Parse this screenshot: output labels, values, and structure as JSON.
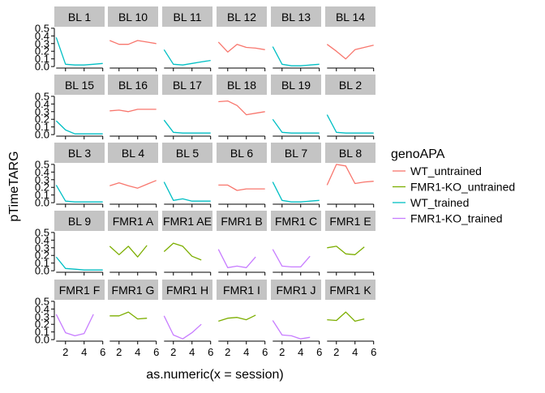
{
  "chart_data": {
    "type": "line",
    "facet": true,
    "xlabel": "as.numeric(x = session)",
    "ylabel": "pTimeTARG",
    "x_ticks": [
      2,
      4,
      6
    ],
    "y_ticks": [
      "0.0",
      "0.1",
      "0.2",
      "0.3",
      "0.4",
      "0.5"
    ],
    "xlim": [
      0.8,
      6.2
    ],
    "ylim": [
      -0.02,
      0.52
    ],
    "legend": {
      "title": "genoAPA",
      "placement": "right",
      "entries": [
        {
          "label": "WT_untrained",
          "color": "#F8766D"
        },
        {
          "label": "FMR1-KO_untrained",
          "color": "#7CAE00"
        },
        {
          "label": "WT_trained",
          "color": "#00BFC4"
        },
        {
          "label": "FMR1-KO_trained",
          "color": "#C77CFF"
        }
      ]
    },
    "panels": [
      {
        "label": "BL 1",
        "group": "WT_trained",
        "x": [
          1,
          2,
          3,
          4,
          5,
          6
        ],
        "y": [
          0.38,
          0.03,
          0.02,
          0.02,
          0.03,
          0.04
        ]
      },
      {
        "label": "BL 10",
        "group": "WT_untrained",
        "x": [
          1,
          2,
          3,
          4,
          5,
          6
        ],
        "y": [
          0.34,
          0.29,
          0.29,
          0.34,
          0.32,
          0.3
        ]
      },
      {
        "label": "BL 11",
        "group": "WT_trained",
        "x": [
          1,
          2,
          3,
          4,
          5,
          6
        ],
        "y": [
          0.22,
          0.03,
          0.02,
          0.04,
          0.06,
          0.08
        ]
      },
      {
        "label": "BL 12",
        "group": "WT_untrained",
        "x": [
          1,
          2,
          3,
          4,
          5,
          6
        ],
        "y": [
          0.32,
          0.19,
          0.29,
          0.25,
          0.24,
          0.22
        ]
      },
      {
        "label": "BL 13",
        "group": "WT_trained",
        "x": [
          1,
          2,
          3,
          4,
          5,
          6
        ],
        "y": [
          0.26,
          0.03,
          0.01,
          0.01,
          0.02,
          0.03
        ]
      },
      {
        "label": "BL 14",
        "group": "WT_untrained",
        "x": [
          1,
          2,
          3,
          4,
          5,
          6
        ],
        "y": [
          0.29,
          0.2,
          0.1,
          0.22,
          0.25,
          0.28
        ]
      },
      {
        "label": "BL 15",
        "group": "WT_trained",
        "x": [
          1,
          2,
          3,
          4,
          5,
          6
        ],
        "y": [
          0.18,
          0.06,
          0.01,
          0.01,
          0.01,
          0.01
        ]
      },
      {
        "label": "BL 16",
        "group": "WT_untrained",
        "x": [
          1,
          2,
          3,
          4,
          5,
          6
        ],
        "y": [
          0.31,
          0.32,
          0.3,
          0.33,
          0.33,
          0.33
        ]
      },
      {
        "label": "BL 17",
        "group": "WT_trained",
        "x": [
          1,
          2,
          3,
          4,
          5,
          6
        ],
        "y": [
          0.19,
          0.03,
          0.02,
          0.02,
          0.02,
          0.02
        ]
      },
      {
        "label": "BL 18",
        "group": "WT_untrained",
        "x": [
          1,
          2,
          3,
          4,
          5,
          6
        ],
        "y": [
          0.43,
          0.44,
          0.38,
          0.26,
          0.28,
          0.3
        ]
      },
      {
        "label": "BL 19",
        "group": "WT_trained",
        "x": [
          1,
          2,
          3,
          4,
          5,
          6
        ],
        "y": [
          0.2,
          0.03,
          0.02,
          0.02,
          0.02,
          0.02
        ]
      },
      {
        "label": "BL 2",
        "group": "WT_trained",
        "x": [
          1,
          2,
          3,
          4,
          5,
          6
        ],
        "y": [
          0.26,
          0.03,
          0.02,
          0.02,
          0.02,
          0.02
        ]
      },
      {
        "label": "BL 3",
        "group": "WT_trained",
        "x": [
          1,
          2,
          3,
          4,
          5,
          6
        ],
        "y": [
          0.23,
          0.02,
          0.01,
          0.01,
          0.01,
          0.01
        ]
      },
      {
        "label": "BL 4",
        "group": "WT_untrained",
        "x": [
          1,
          2,
          3,
          4,
          5,
          6
        ],
        "y": [
          0.22,
          0.26,
          0.22,
          0.19,
          0.24,
          0.29
        ]
      },
      {
        "label": "BL 5",
        "group": "WT_trained",
        "x": [
          1,
          2,
          3,
          4,
          5,
          6
        ],
        "y": [
          0.27,
          0.03,
          0.05,
          0.02,
          0.02,
          0.02
        ]
      },
      {
        "label": "BL 6",
        "group": "WT_untrained",
        "x": [
          1,
          2,
          3,
          4,
          5,
          6
        ],
        "y": [
          0.23,
          0.23,
          0.16,
          0.18,
          0.18,
          0.18
        ]
      },
      {
        "label": "BL 7",
        "group": "WT_trained",
        "x": [
          1,
          2,
          3,
          4,
          5,
          6
        ],
        "y": [
          0.27,
          0.03,
          0.01,
          0.01,
          0.02,
          0.03
        ]
      },
      {
        "label": "BL 8",
        "group": "WT_untrained",
        "x": [
          1,
          2,
          3,
          4,
          5,
          6
        ],
        "y": [
          0.23,
          0.5,
          0.48,
          0.25,
          0.27,
          0.28
        ]
      },
      {
        "label": "BL 9",
        "group": "WT_trained",
        "x": [
          1,
          2,
          3,
          4,
          5,
          6
        ],
        "y": [
          0.18,
          0.03,
          0.02,
          0.01,
          0.01,
          0.01
        ]
      },
      {
        "label": "FMR1 A",
        "group": "FMR1-KO_untrained",
        "x": [
          1,
          2,
          3,
          4,
          5
        ],
        "y": [
          0.32,
          0.21,
          0.32,
          0.18,
          0.33
        ]
      },
      {
        "label": "FMR1 AE",
        "group": "FMR1-KO_untrained",
        "x": [
          1,
          2,
          3,
          4,
          5
        ],
        "y": [
          0.25,
          0.36,
          0.32,
          0.19,
          0.14
        ]
      },
      {
        "label": "FMR1 B",
        "group": "FMR1-KO_trained",
        "x": [
          1,
          2,
          3,
          4,
          5
        ],
        "y": [
          0.28,
          0.04,
          0.06,
          0.04,
          0.18
        ]
      },
      {
        "label": "FMR1 C",
        "group": "FMR1-KO_trained",
        "x": [
          1,
          2,
          3,
          4,
          5
        ],
        "y": [
          0.28,
          0.06,
          0.05,
          0.05,
          0.19
        ]
      },
      {
        "label": "FMR1 E",
        "group": "FMR1-KO_untrained",
        "x": [
          1,
          2,
          3,
          4,
          5
        ],
        "y": [
          0.3,
          0.32,
          0.22,
          0.21,
          0.31
        ]
      },
      {
        "label": "FMR1 F",
        "group": "FMR1-KO_trained",
        "x": [
          1,
          2,
          3,
          4,
          5
        ],
        "y": [
          0.33,
          0.09,
          0.05,
          0.08,
          0.33
        ]
      },
      {
        "label": "FMR1 G",
        "group": "FMR1-KO_untrained",
        "x": [
          1,
          2,
          3,
          4,
          5
        ],
        "y": [
          0.31,
          0.31,
          0.36,
          0.27,
          0.28
        ]
      },
      {
        "label": "FMR1 H",
        "group": "FMR1-KO_trained",
        "x": [
          1,
          2,
          3,
          4,
          5
        ],
        "y": [
          0.31,
          0.06,
          0.01,
          0.09,
          0.2
        ]
      },
      {
        "label": "FMR1 I",
        "group": "FMR1-KO_untrained",
        "x": [
          1,
          2,
          3,
          4,
          5
        ],
        "y": [
          0.24,
          0.28,
          0.29,
          0.26,
          0.32
        ]
      },
      {
        "label": "FMR1 J",
        "group": "FMR1-KO_trained",
        "x": [
          1,
          2,
          3,
          4,
          5
        ],
        "y": [
          0.25,
          0.06,
          0.05,
          0.01,
          0.03
        ]
      },
      {
        "label": "FMR1 K",
        "group": "FMR1-KO_untrained",
        "x": [
          1,
          2,
          3,
          4,
          5
        ],
        "y": [
          0.26,
          0.25,
          0.36,
          0.24,
          0.27
        ]
      }
    ]
  }
}
